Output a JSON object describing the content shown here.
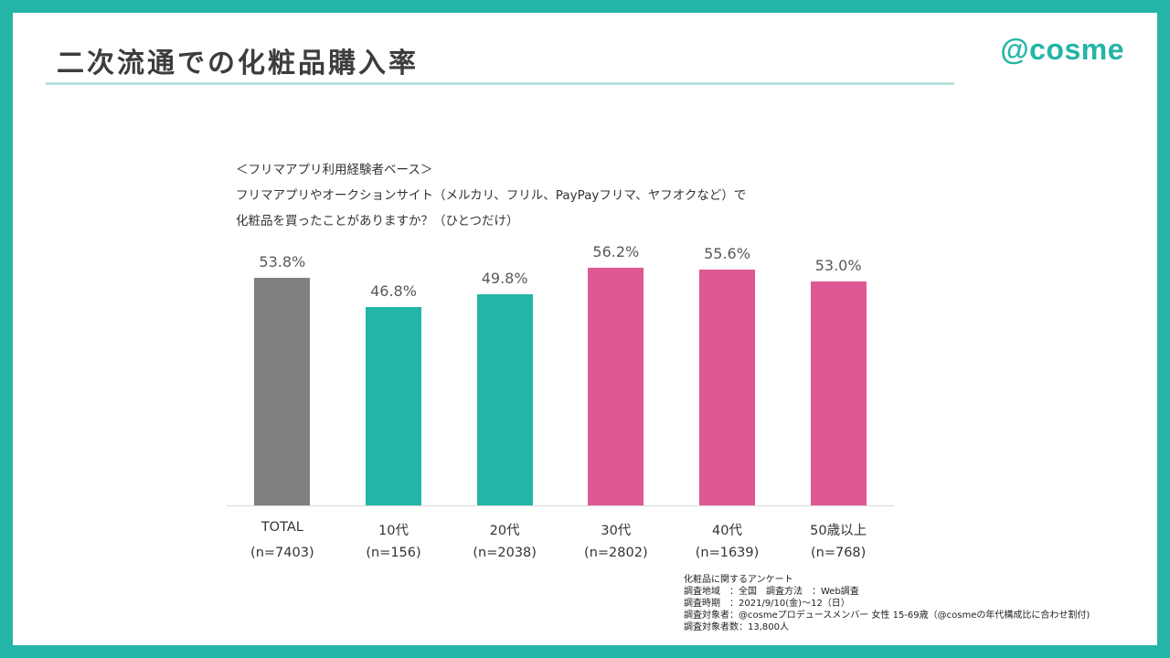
{
  "header": {
    "title": "二次流通での化粧品購入率",
    "brand": "@cosme"
  },
  "question": {
    "base": "＜フリマアプリ利用経験者ベース＞",
    "line1": "フリマアプリやオークションサイト（メルカリ、フリル、PayPayフリマ、ヤフオクなど）で",
    "line2": "化粧品を買ったことがありますか？（ひとつだけ）"
  },
  "colors": {
    "total": "#808080",
    "young": "#24b5a6",
    "older": "#de5893",
    "frame": "#24b5a6"
  },
  "chart_data": {
    "type": "bar",
    "categories": [
      "TOTAL",
      "10代",
      "20代",
      "30代",
      "40代",
      "50歳以上"
    ],
    "sample_sizes": [
      "(n=7403)",
      "(n=156)",
      "(n=2038)",
      "(n=2802)",
      "(n=1639)",
      "(n=768)"
    ],
    "values": [
      53.8,
      46.8,
      49.8,
      56.2,
      55.6,
      53.0
    ],
    "value_labels": [
      "53.8%",
      "46.8%",
      "49.8%",
      "56.2%",
      "55.6%",
      "53.0%"
    ],
    "bar_colors": [
      "#808080",
      "#24b5a6",
      "#24b5a6",
      "#de5893",
      "#de5893",
      "#de5893"
    ],
    "ylim": [
      0,
      60
    ],
    "grid": false,
    "legend": "none"
  },
  "notes": [
    "化粧品に関するアンケート",
    "調査地域　：全国　調査方法　：Web調査",
    "調査時期　：2021/9/10(金)～12（日）",
    "調査対象者：@cosmeプロデュースメンバー 女性 15-69歳（@cosmeの年代構成比に合わせ割付)",
    "調査対象者数：13,800人"
  ]
}
